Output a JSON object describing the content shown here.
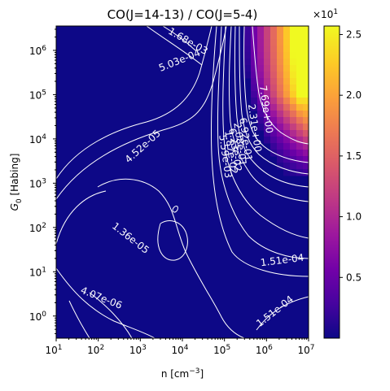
{
  "chart_data": {
    "type": "heatmap",
    "title": "CO(J=14-13) / CO(J=5-4)",
    "xlabel": "n [cm$^{-3}$]",
    "xlabel_base": "n [cm",
    "xlabel_exp": "−3",
    "xlabel_close": "]",
    "ylabel_sub": "0",
    "ylabel_rest": " [Habing]",
    "ylabel_G": "G",
    "x_scale": "log",
    "y_scale": "log",
    "xlim_log10": [
      1,
      7
    ],
    "ylim_log10": [
      -0.5,
      6.55
    ],
    "x_ticks": [
      {
        "exp": 1,
        "label": "10",
        "sup": "1"
      },
      {
        "exp": 2,
        "label": "10",
        "sup": "2"
      },
      {
        "exp": 3,
        "label": "10",
        "sup": "3"
      },
      {
        "exp": 4,
        "label": "10",
        "sup": "4"
      },
      {
        "exp": 5,
        "label": "10",
        "sup": "5"
      },
      {
        "exp": 6,
        "label": "10",
        "sup": "6"
      },
      {
        "exp": 7,
        "label": "10",
        "sup": "7"
      }
    ],
    "y_ticks": [
      {
        "exp": 0,
        "label": "10",
        "sup": "0"
      },
      {
        "exp": 1,
        "label": "10",
        "sup": "1"
      },
      {
        "exp": 2,
        "label": "10",
        "sup": "2"
      },
      {
        "exp": 3,
        "label": "10",
        "sup": "3"
      },
      {
        "exp": 4,
        "label": "10",
        "sup": "4"
      },
      {
        "exp": 5,
        "label": "10",
        "sup": "5"
      },
      {
        "exp": 6,
        "label": "10",
        "sup": "6"
      }
    ],
    "colormap": "plasma",
    "colorbar": {
      "multiplier_base": "×10",
      "multiplier_sup": "1",
      "min": 0.0,
      "max": 2.57,
      "ticks": [
        0.5,
        1.0,
        1.5,
        2.0,
        2.5
      ],
      "tick_labels": [
        "0.5",
        "1.0",
        "1.5",
        "2.0",
        "2.5"
      ]
    },
    "contour_labels": [
      "1.68e-03",
      "5.03e-04",
      "4.52e-05",
      "1.36e-05",
      "4.07e-06",
      "1.51e-04",
      "1.51e-04",
      "7.69e+00",
      "2.31e+00",
      "6.92e-01",
      "2.08e-01",
      "6.23e-02",
      "1.87e-02",
      "5.59e-03"
    ],
    "plasma_stops": [
      "#0d0887",
      "#46039f",
      "#7201a8",
      "#9c179e",
      "#bd3786",
      "#d8576b",
      "#ed7953",
      "#fb9f3a",
      "#fdca26",
      "#f0f921"
    ]
  }
}
